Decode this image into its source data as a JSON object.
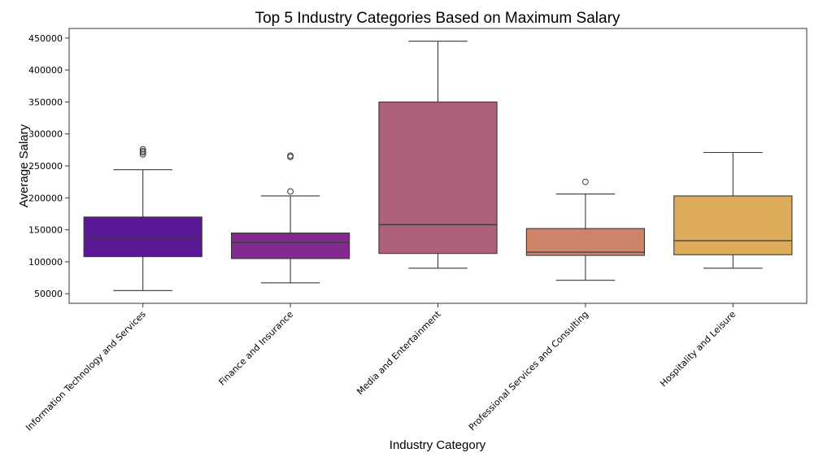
{
  "chart_data": {
    "type": "box",
    "title": "Top 5 Industry Categories Based on Maximum Salary",
    "xlabel": "Industry Category",
    "ylabel": "Average Salary",
    "ylim": [
      35000,
      465000
    ],
    "yticks": [
      50000,
      100000,
      150000,
      200000,
      250000,
      300000,
      350000,
      400000,
      450000
    ],
    "grid": false,
    "legend": "none",
    "categories": [
      "Information Technology and Services",
      "Finance and Insurance",
      "Media and Entertainment",
      "Professional Services and Consulting",
      "Hospitality and Leisure"
    ],
    "boxes": [
      {
        "whisker_low": 55000,
        "q1": 108000,
        "median": 138000,
        "q3": 170000,
        "whisker_high": 244000,
        "outliers": [
          268000,
          271000,
          273000,
          276000
        ],
        "color": "#5a1894"
      },
      {
        "whisker_low": 67000,
        "q1": 105000,
        "median": 130000,
        "q3": 145000,
        "whisker_high": 203000,
        "outliers": [
          210000,
          264000,
          266000
        ],
        "color": "#84298f"
      },
      {
        "whisker_low": 90000,
        "q1": 113000,
        "median": 158000,
        "q3": 350000,
        "whisker_high": 445000,
        "outliers": [],
        "color": "#ad5f7b"
      },
      {
        "whisker_low": 71000,
        "q1": 110000,
        "median": 115000,
        "q3": 152000,
        "whisker_high": 206000,
        "outliers": [
          225000
        ],
        "color": "#ce846b"
      },
      {
        "whisker_low": 90000,
        "q1": 111000,
        "median": 133000,
        "q3": 203000,
        "whisker_high": 271000,
        "outliers": [],
        "color": "#dcac5a"
      }
    ]
  }
}
